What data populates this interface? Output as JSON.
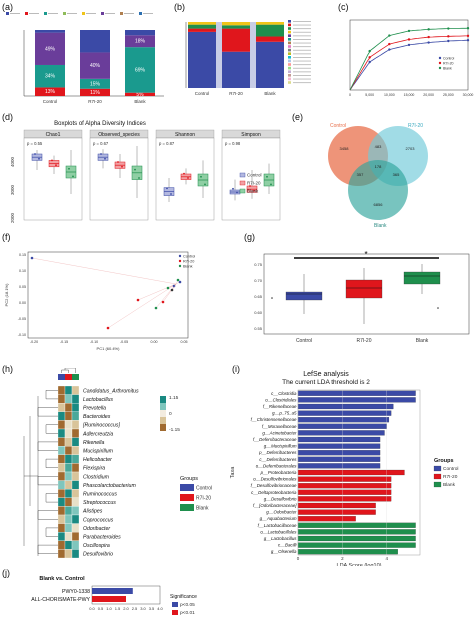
{
  "panel_labels": {
    "a": "(a)",
    "b": "(b)",
    "c": "(c)",
    "d": "(d)",
    "e": "(e)",
    "f": "(f)",
    "g": "(g)",
    "h": "(h)",
    "i": "(i)",
    "j": "(j)"
  },
  "colors": {
    "control": "#3b4aa6",
    "r7i20": "#e0161c",
    "blank": "#1f8f4d"
  },
  "chart_data": [
    {
      "id": "a",
      "type": "bar",
      "stacked": true,
      "categories": [
        "Control",
        "R7I-20",
        "Blank"
      ],
      "series": [
        {
          "name": "red",
          "color": "#e0161c",
          "values": [
            13,
            11,
            5
          ]
        },
        {
          "name": "teal",
          "color": "#1a9a8e",
          "values": [
            34,
            15,
            69
          ]
        },
        {
          "name": "purple",
          "color": "#6a3d9a",
          "values": [
            49,
            40,
            18
          ]
        }
      ],
      "labels": [
        [
          "13%",
          "34%",
          "49%"
        ],
        [
          "11%",
          "15%",
          "40%"
        ],
        [
          "5%",
          "69%",
          "18%"
        ]
      ],
      "legend_swatches": [
        "#3b4aa6",
        "#e0161c",
        "#1a9a8e",
        "#8fbc5a",
        "#f0c419",
        "#6a3d9a",
        "#b08050",
        "#2b6fb0"
      ]
    },
    {
      "id": "b",
      "type": "bar",
      "stacked": true,
      "categories": [
        "Control",
        "R7I-20",
        "Blank"
      ],
      "segments": [
        {
          "color": "#3b4aa6",
          "values": [
            85,
            55,
            70
          ]
        },
        {
          "color": "#e0161c",
          "values": [
            5,
            35,
            8
          ]
        },
        {
          "color": "#1f8f4d",
          "values": [
            6,
            5,
            18
          ]
        },
        {
          "color": "#f0c419",
          "values": [
            4,
            5,
            4
          ]
        }
      ],
      "legend_swatches": [
        "#3b4aa6",
        "#e0161c",
        "#1f8f4d",
        "#f0c419",
        "#6a3d9a",
        "#1a9a8e",
        "#b08050",
        "#e377c2",
        "#7f7f7f",
        "#bcbd22",
        "#17becf",
        "#aec7e8",
        "#ff9896",
        "#98df8a",
        "#c5b0d5",
        "#c49c94",
        "#f7b6d2",
        "#dbdb8d"
      ]
    },
    {
      "id": "c",
      "type": "line",
      "x": [
        0,
        5000,
        10000,
        15000,
        20000,
        25000,
        30000
      ],
      "xticks": [
        "0",
        "5,000",
        "10,000",
        "15,000",
        "20,000",
        "25,000",
        "30,000"
      ],
      "series": [
        {
          "name": "Control",
          "color": "#3b4aa6",
          "values": [
            0,
            1800,
            2600,
            2900,
            3050,
            3150,
            3200
          ]
        },
        {
          "name": "R7I-20",
          "color": "#e0161c",
          "values": [
            0,
            2100,
            2950,
            3250,
            3400,
            3450,
            3480
          ]
        },
        {
          "name": "Blank",
          "color": "#1f8f4d",
          "values": [
            0,
            2500,
            3500,
            3800,
            3900,
            3950,
            3970
          ]
        }
      ],
      "ylim": [
        0,
        4500
      ]
    },
    {
      "id": "d",
      "type": "box",
      "title": "Boxplots of Alpha Diversity Indices",
      "facets": [
        {
          "name": "Chao1",
          "p": "p = 0.55"
        },
        {
          "name": "Observed_species",
          "p": "p = 0.67"
        },
        {
          "name": "Shannon",
          "p": "p = 0.87"
        },
        {
          "name": "Simpson",
          "p": "p = 0.98"
        }
      ],
      "yticks": [
        "2000",
        "3000",
        "4000"
      ],
      "legend": [
        "Control",
        "R7I-20",
        "Blank"
      ]
    },
    {
      "id": "e",
      "type": "venn",
      "sets": [
        "Control",
        "R7I-20",
        "Blank"
      ],
      "regions": {
        "control_only": "3458",
        "r7i20_only": "2703",
        "blank_only": "6856",
        "control_r7i20": "483",
        "control_blank": "357",
        "r7i20_blank": "365",
        "all": "178"
      }
    },
    {
      "id": "f",
      "type": "scatter",
      "xlabel": "PC1 (60.4%)",
      "ylabel": "PC2 (18.1%)",
      "xticks": [
        "-0.20",
        "-0.15",
        "-0.10",
        "-0.05",
        "0.00",
        "0.05"
      ],
      "yticks": [
        "0.15",
        "0.10",
        "0.05",
        "0.00",
        "-0.05",
        "-0.10"
      ],
      "legend": [
        "Control",
        "R7I-20",
        "Blank"
      ]
    },
    {
      "id": "g",
      "type": "box",
      "categories": [
        "Control",
        "R7I-20",
        "Blank"
      ],
      "yticks": [
        "0.75",
        "0.70",
        "0.65",
        "0.60",
        "0.55"
      ],
      "significance": "*"
    },
    {
      "id": "h",
      "type": "heatmap",
      "rows": [
        "Candidatus_Arthromitus",
        "Lactobacillus",
        "Prevotella",
        "Bacteroides",
        "[Ruminococcus]",
        "Adlercreutzia",
        "Rikenella",
        "Mucispirillum",
        "Helicobacter",
        "Flexispira",
        "Clostridium",
        "Phascolarctobacterium",
        "Ruminococcus",
        "Streptococcus",
        "Alistipes",
        "Coprococcus",
        "Odoribacter",
        "Parabacteroides",
        "Oscillospira",
        "Desulfovibrio"
      ],
      "scale": [
        "1.15",
        "0",
        "-1.15"
      ],
      "legend_title": "Groups",
      "legend": [
        "Control",
        "R7I-20",
        "Blank"
      ]
    },
    {
      "id": "i",
      "type": "bar",
      "orientation": "horizontal",
      "title": "LefSe analysis",
      "subtitle": "The current LDA threshold is 2",
      "xlabel": "LDA Score (log10)",
      "ylabel": "Taxa",
      "xticks": [
        "0",
        "2",
        "4"
      ],
      "xlim": [
        0,
        5.5
      ],
      "legend_title": "Groups",
      "legend": [
        "Control",
        "R7I-20",
        "Blank"
      ],
      "bars": [
        {
          "label": "c__Clostridia",
          "value": 5.3,
          "group": "control"
        },
        {
          "label": "o__Clostridiales",
          "value": 5.3,
          "group": "control"
        },
        {
          "label": "f__Rikenellaceae",
          "value": 4.3,
          "group": "control"
        },
        {
          "label": "g__p_75_a5",
          "value": 4.2,
          "group": "control"
        },
        {
          "label": "f__Christensenellaceae",
          "value": 4.1,
          "group": "control"
        },
        {
          "label": "f__Moraxellaceae",
          "value": 4.0,
          "group": "control"
        },
        {
          "label": "g__Acinetobacter",
          "value": 3.9,
          "group": "control"
        },
        {
          "label": "f__Deferribacteraceae",
          "value": 3.7,
          "group": "control"
        },
        {
          "label": "g__Mucispirillum",
          "value": 3.7,
          "group": "control"
        },
        {
          "label": "p__Deferribacteres",
          "value": 3.7,
          "group": "control"
        },
        {
          "label": "c__Deferribacteres",
          "value": 3.7,
          "group": "control"
        },
        {
          "label": "o__Deferribacterales",
          "value": 3.7,
          "group": "control"
        },
        {
          "label": "p__Proteobacteria",
          "value": 4.8,
          "group": "r7i20"
        },
        {
          "label": "o__Desulfovibrionales",
          "value": 4.2,
          "group": "r7i20"
        },
        {
          "label": "f__Desulfovibrionaceae",
          "value": 4.2,
          "group": "r7i20"
        },
        {
          "label": "c__Deltaproteobacteria",
          "value": 4.2,
          "group": "r7i20"
        },
        {
          "label": "g__Desulfovibrio",
          "value": 4.2,
          "group": "r7i20"
        },
        {
          "label": "f__[Odoribacteraceae]",
          "value": 3.5,
          "group": "r7i20"
        },
        {
          "label": "g__Odoribacter",
          "value": 3.5,
          "group": "r7i20"
        },
        {
          "label": "g__Aquabacterium",
          "value": 2.6,
          "group": "r7i20"
        },
        {
          "label": "f__Lactobacillaceae",
          "value": 5.3,
          "group": "blank"
        },
        {
          "label": "o__Lactobacillales",
          "value": 5.3,
          "group": "blank"
        },
        {
          "label": "g__Lactobacillus",
          "value": 5.3,
          "group": "blank"
        },
        {
          "label": "c__Bacilli",
          "value": 5.3,
          "group": "blank"
        },
        {
          "label": "g__Olsenella",
          "value": 4.5,
          "group": "blank"
        }
      ]
    },
    {
      "id": "j",
      "type": "bar",
      "orientation": "horizontal",
      "title": "Blank vs. Control",
      "xticks": [
        "0.0",
        "0.5",
        "1.0",
        "1.5",
        "2.0",
        "2.5",
        "3.0",
        "3.5",
        "4.0"
      ],
      "xlim": [
        0,
        4.0
      ],
      "legend_title": "Significance",
      "legend": [
        "p<0.05",
        "p<0.01"
      ],
      "bars": [
        {
          "label": "PWY0-1338",
          "color": "#3b4aa6",
          "value": 2.4
        },
        {
          "label": "ALL-CHORISMATE-PWY",
          "color": "#e0161c",
          "value": 2.0
        }
      ]
    }
  ]
}
